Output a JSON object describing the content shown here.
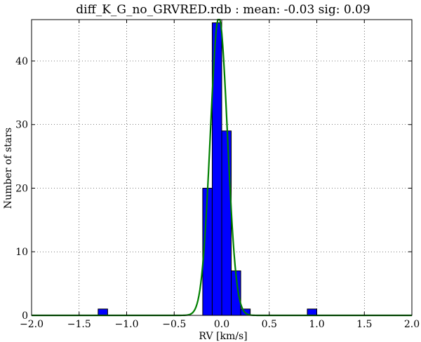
{
  "chart_data": {
    "type": "bar",
    "title": "diff_K_G_no_GRVRED.rdb  : mean: -0.03  sig: 0.09",
    "xlabel": "RV [km/s]",
    "ylabel": "Number of stars",
    "xlim": [
      -2.0,
      2.0
    ],
    "ylim": [
      0,
      46.5
    ],
    "xticks": [
      -2.0,
      -1.5,
      -1.0,
      -0.5,
      0.0,
      0.5,
      1.0,
      1.5,
      2.0
    ],
    "xtick_labels": [
      "−2.0",
      "−1.5",
      "−1.0",
      "−0.5",
      "0.0",
      "0.5",
      "1.0",
      "1.5",
      "2.0"
    ],
    "yticks": [
      0,
      10,
      20,
      30,
      40
    ],
    "ytick_labels": [
      "0",
      "10",
      "20",
      "30",
      "40"
    ],
    "grid": true,
    "histogram": {
      "bin_width": 0.1,
      "bins": [
        {
          "x0": -1.3,
          "x1": -1.2,
          "count": 1
        },
        {
          "x0": -0.2,
          "x1": -0.1,
          "count": 20
        },
        {
          "x0": -0.1,
          "x1": 0.0,
          "count": 46
        },
        {
          "x0": 0.0,
          "x1": 0.1,
          "count": 29
        },
        {
          "x0": 0.1,
          "x1": 0.2,
          "count": 7
        },
        {
          "x0": 0.2,
          "x1": 0.3,
          "count": 1
        },
        {
          "x0": 0.9,
          "x1": 1.0,
          "count": 1
        }
      ],
      "fill_color": "#0000ff",
      "edge_color": "#000000"
    },
    "fit": {
      "type": "gaussian",
      "mean": -0.03,
      "sigma": 0.09,
      "amplitude": 47,
      "color": "#008000"
    }
  }
}
